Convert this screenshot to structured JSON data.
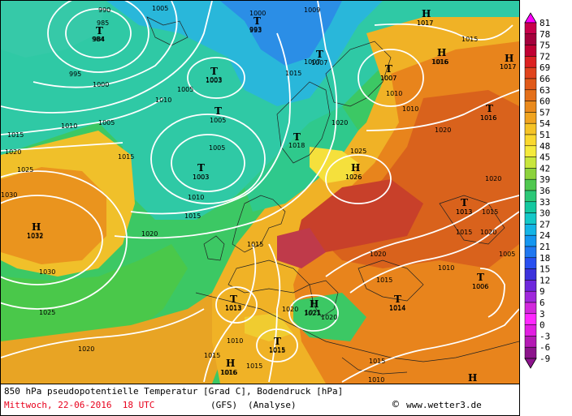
{
  "map": {
    "isobar_labels": [
      "990",
      "985",
      "984",
      "995",
      "1005",
      "1000",
      "993",
      "1009",
      "1017",
      "1015",
      "1016",
      "1017",
      "1000",
      "1003",
      "1007",
      "1007",
      "1005",
      "1010",
      "1010",
      "1015",
      "1005",
      "1015",
      "1010",
      "1020",
      "1016",
      "1020",
      "1025",
      "1020",
      "1015",
      "1010",
      "1003",
      "1005",
      "1026",
      "1025",
      "1015",
      "1010",
      "1020",
      "1020",
      "1013",
      "1015",
      "1032",
      "1020",
      "1015",
      "1030",
      "1015",
      "1020",
      "1010",
      "1005",
      "1013",
      "1006",
      "1025",
      "1020",
      "1021",
      "1020",
      "1014",
      "1015",
      "1020",
      "1010",
      "1015",
      "1016",
      "1015",
      "1015",
      "1015",
      "1010",
      "1030"
    ],
    "highs": [
      {
        "symbol": "H",
        "value": "1017"
      },
      {
        "symbol": "H",
        "value": "1016"
      },
      {
        "symbol": "H",
        "value": "1017"
      },
      {
        "symbol": "H",
        "value": "1026"
      },
      {
        "symbol": "H",
        "value": "1032"
      },
      {
        "symbol": "H",
        "value": "1021"
      },
      {
        "symbol": "H",
        "value": "1016"
      },
      {
        "symbol": "H",
        "value": ""
      }
    ],
    "lows": [
      {
        "symbol": "T",
        "value": "984"
      },
      {
        "symbol": "T",
        "value": "993"
      },
      {
        "symbol": "T",
        "value": "1003"
      },
      {
        "symbol": "T",
        "value": "1007"
      },
      {
        "symbol": "T",
        "value": "1007"
      },
      {
        "symbol": "T",
        "value": "1005"
      },
      {
        "symbol": "T",
        "value": "1016"
      },
      {
        "symbol": "T",
        "value": "1018"
      },
      {
        "symbol": "T",
        "value": "1003"
      },
      {
        "symbol": "T",
        "value": "1013"
      },
      {
        "symbol": "T",
        "value": "1006"
      },
      {
        "symbol": "T",
        "value": "1013"
      },
      {
        "symbol": "T",
        "value": "1014"
      },
      {
        "symbol": "T",
        "value": "1015"
      }
    ]
  },
  "legend": {
    "labels": [
      "81",
      "78",
      "75",
      "72",
      "69",
      "66",
      "63",
      "60",
      "57",
      "54",
      "51",
      "48",
      "45",
      "42",
      "39",
      "36",
      "33",
      "30",
      "27",
      "24",
      "21",
      "18",
      "15",
      "12",
      "9",
      "6",
      "3",
      "0",
      "-3",
      "-6",
      "-9"
    ],
    "colors": [
      "#ff00ff",
      "#c8004b",
      "#a4003c",
      "#c00033",
      "#dc2222",
      "#e0441e",
      "#e05a1a",
      "#e4701a",
      "#ea8a1c",
      "#f0a420",
      "#f5c326",
      "#fad82e",
      "#f5ea3c",
      "#c8e63c",
      "#8cd23c",
      "#50c850",
      "#2cc878",
      "#14c8a0",
      "#14c8c8",
      "#14b4e6",
      "#1496f0",
      "#2078f0",
      "#2850f0",
      "#3c32dc",
      "#6e28dc",
      "#a028dc",
      "#d228dc",
      "#ff28ff",
      "#e11ee1",
      "#b419b4",
      "#8c148c"
    ]
  },
  "footer": {
    "line1": "850 hPa pseudopotentielle Temperatur [Grad C], Bodendruck [hPa]",
    "date": "Mittwoch, 22-06-2016  18 UTC",
    "model": "(GFS)",
    "analysis": "(Analyse)",
    "credit": "www.wetter3.de",
    "copyright_symbol": "©"
  }
}
